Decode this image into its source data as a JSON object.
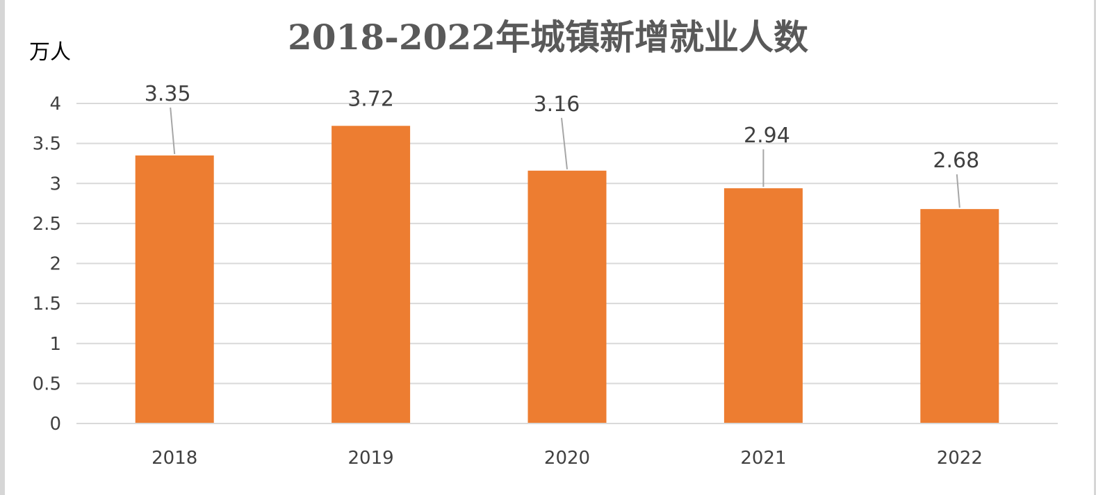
{
  "chart_data": {
    "type": "bar",
    "title": "2018-2022年城镇新增就业人数",
    "unit_label": "万人",
    "xlabel": "",
    "ylabel": "",
    "categories": [
      "2018",
      "2019",
      "2020",
      "2021",
      "2022"
    ],
    "values": [
      3.35,
      3.72,
      3.16,
      2.94,
      2.68
    ],
    "data_labels": [
      "3.35",
      "3.72",
      "3.16",
      "2.94",
      "2.68"
    ],
    "ylim": [
      0,
      4
    ],
    "y_ticks": [
      0,
      0.5,
      1,
      1.5,
      2,
      2.5,
      3,
      3.5,
      4
    ],
    "y_tick_labels": [
      "0",
      "0.5",
      "1",
      "1.5",
      "2",
      "2.5",
      "3",
      "3.5",
      "4"
    ],
    "grid": true,
    "legend": "none",
    "bar_color": "#ED7D31",
    "grid_color": "#D9D9D9",
    "text_color": "#404040",
    "title_color": "#595959"
  }
}
